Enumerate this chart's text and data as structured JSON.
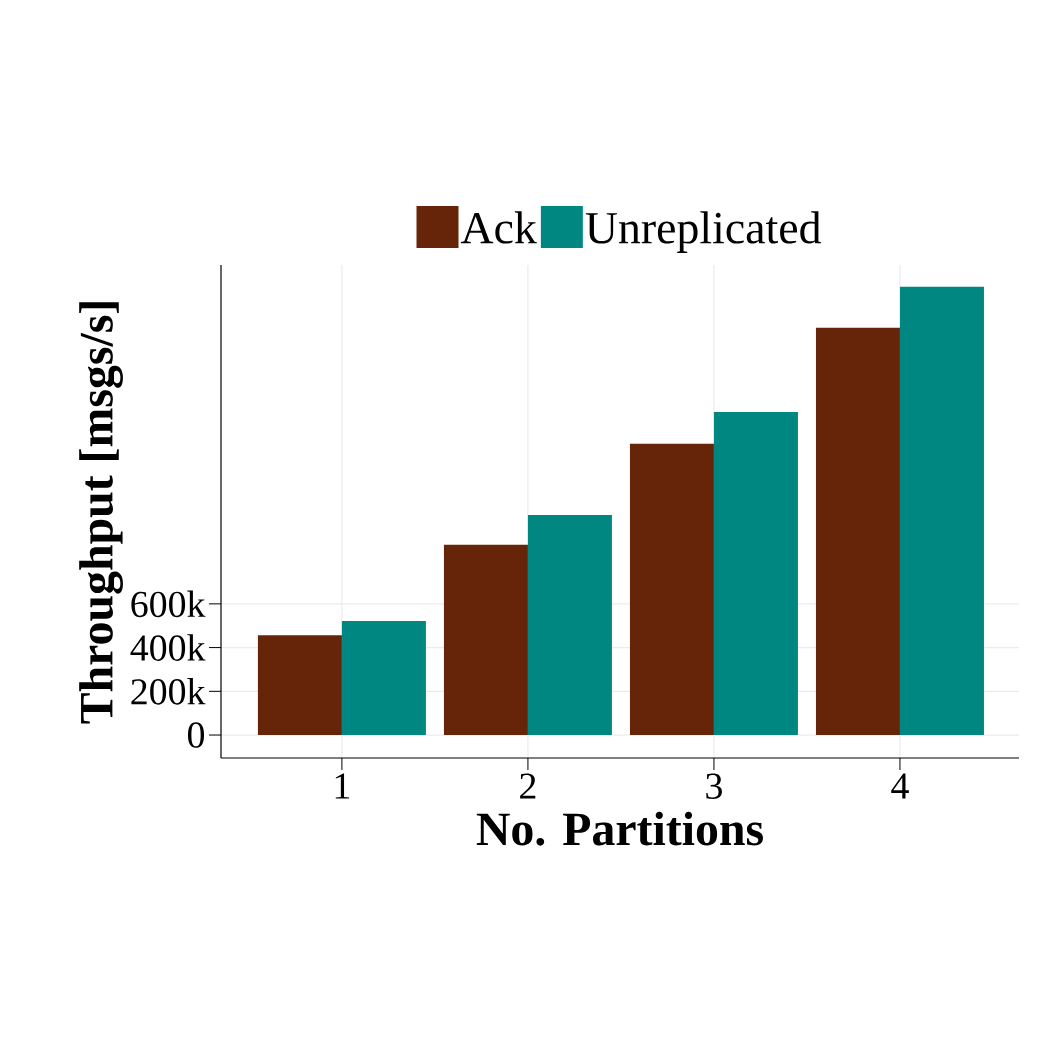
{
  "chart_data": {
    "type": "bar",
    "xlabel": "No. Partitions",
    "ylabel": "Throughput [msgs/s]",
    "categories": [
      "1",
      "2",
      "3",
      "4"
    ],
    "series": [
      {
        "name": "Ack",
        "color": "#662408",
        "values": [
          457000,
          870000,
          1332000,
          1863000
        ]
      },
      {
        "name": "Unreplicated",
        "color": "#008781",
        "values": [
          522000,
          1007000,
          1478000,
          2050000
        ]
      }
    ],
    "ylim": [
      -105000,
      2150000
    ],
    "yticks": [
      0,
      {
        "value": 200000,
        "label": "200k"
      },
      {
        "value": 400000,
        "label": "400k"
      },
      {
        "value": 600000,
        "label": "600k"
      }
    ],
    "grid": true,
    "legend": "top"
  }
}
